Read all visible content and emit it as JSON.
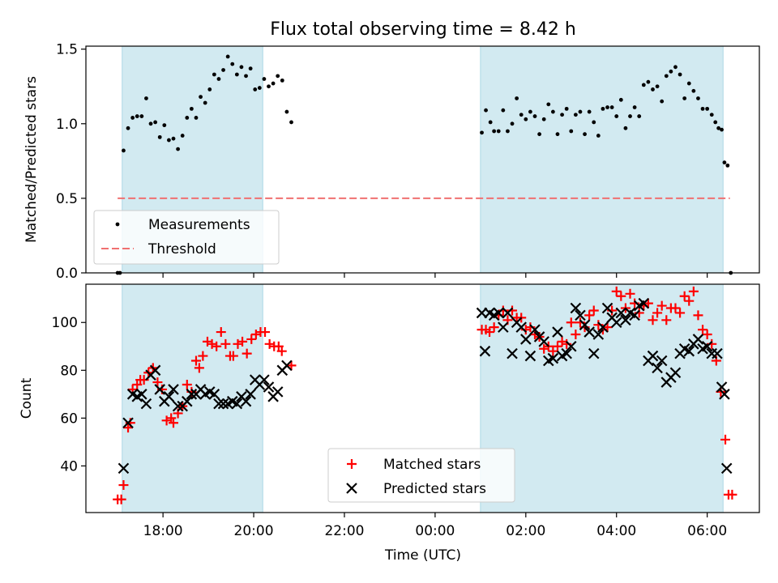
{
  "chart_data": {
    "type": "scatter",
    "title": "Flux total observing time = 8.42 h",
    "xlabel": "Time (UTC)",
    "x_unit": "hours relative to 00:00 UTC (negative = before midnight)",
    "x_ticks": [
      -6,
      -4,
      -2,
      0,
      2,
      4,
      6
    ],
    "x_tick_labels": [
      "18:00",
      "20:00",
      "22:00",
      "00:00",
      "02:00",
      "04:00",
      "06:00"
    ],
    "xlim": [
      -7.7,
      7.15
    ],
    "grid": false,
    "shaded_intervals": [
      [
        -6.9,
        -3.8
      ],
      [
        1.0,
        6.35
      ]
    ],
    "colors": {
      "shade": "#add8e6",
      "measurement": "#000000",
      "threshold": "#f07070",
      "matched": "#ff0000",
      "predicted": "#000000"
    },
    "top": {
      "ylabel": "Matched/Predicted stars",
      "ylim": [
        0,
        1.52
      ],
      "y_ticks": [
        0.0,
        0.5,
        1.0,
        1.5
      ],
      "y_tick_labels": [
        "0.0",
        "0.5",
        "1.0",
        "1.5"
      ],
      "threshold_value": 0.5,
      "threshold_x_range": [
        -7.0,
        6.5
      ],
      "legend_position": "lower left",
      "legend": [
        "Measurements",
        "Threshold"
      ],
      "measurements": [
        [
          -7.0,
          0.0
        ],
        [
          -6.95,
          0.0
        ],
        [
          -6.87,
          0.82
        ],
        [
          -6.77,
          0.97
        ],
        [
          -6.67,
          1.04
        ],
        [
          -6.57,
          1.05
        ],
        [
          -6.47,
          1.05
        ],
        [
          -6.37,
          1.17
        ],
        [
          -6.27,
          1.0
        ],
        [
          -6.17,
          1.01
        ],
        [
          -6.07,
          0.91
        ],
        [
          -5.97,
          0.99
        ],
        [
          -5.87,
          0.89
        ],
        [
          -5.77,
          0.9
        ],
        [
          -5.67,
          0.83
        ],
        [
          -5.57,
          0.92
        ],
        [
          -5.47,
          1.04
        ],
        [
          -5.37,
          1.1
        ],
        [
          -5.27,
          1.04
        ],
        [
          -5.17,
          1.18
        ],
        [
          -5.07,
          1.14
        ],
        [
          -4.97,
          1.23
        ],
        [
          -4.87,
          1.33
        ],
        [
          -4.77,
          1.3
        ],
        [
          -4.67,
          1.36
        ],
        [
          -4.57,
          1.45
        ],
        [
          -4.47,
          1.4
        ],
        [
          -4.37,
          1.33
        ],
        [
          -4.27,
          1.38
        ],
        [
          -4.17,
          1.32
        ],
        [
          -4.07,
          1.37
        ],
        [
          -3.97,
          1.23
        ],
        [
          -3.87,
          1.24
        ],
        [
          -3.77,
          1.3
        ],
        [
          -3.67,
          1.25
        ],
        [
          -3.57,
          1.27
        ],
        [
          -3.47,
          1.32
        ],
        [
          -3.37,
          1.29
        ],
        [
          -3.27,
          1.08
        ],
        [
          -3.17,
          1.01
        ],
        [
          1.03,
          0.94
        ],
        [
          1.12,
          1.09
        ],
        [
          1.22,
          1.01
        ],
        [
          1.3,
          0.95
        ],
        [
          1.4,
          0.95
        ],
        [
          1.5,
          1.09
        ],
        [
          1.6,
          0.95
        ],
        [
          1.7,
          1.0
        ],
        [
          1.8,
          1.17
        ],
        [
          1.9,
          1.06
        ],
        [
          2.0,
          1.03
        ],
        [
          2.1,
          1.08
        ],
        [
          2.2,
          1.05
        ],
        [
          2.3,
          0.93
        ],
        [
          2.4,
          1.03
        ],
        [
          2.5,
          1.13
        ],
        [
          2.6,
          1.08
        ],
        [
          2.7,
          0.93
        ],
        [
          2.8,
          1.06
        ],
        [
          2.9,
          1.1
        ],
        [
          3.0,
          0.95
        ],
        [
          3.1,
          1.06
        ],
        [
          3.2,
          1.08
        ],
        [
          3.3,
          0.93
        ],
        [
          3.4,
          1.08
        ],
        [
          3.5,
          1.01
        ],
        [
          3.6,
          0.92
        ],
        [
          3.7,
          1.1
        ],
        [
          3.8,
          1.11
        ],
        [
          3.9,
          1.11
        ],
        [
          4.0,
          1.05
        ],
        [
          4.1,
          1.16
        ],
        [
          4.2,
          0.97
        ],
        [
          4.3,
          1.05
        ],
        [
          4.4,
          1.11
        ],
        [
          4.5,
          1.05
        ],
        [
          4.6,
          1.26
        ],
        [
          4.7,
          1.28
        ],
        [
          4.8,
          1.23
        ],
        [
          4.9,
          1.25
        ],
        [
          5.0,
          1.15
        ],
        [
          5.1,
          1.32
        ],
        [
          5.2,
          1.35
        ],
        [
          5.3,
          1.38
        ],
        [
          5.4,
          1.33
        ],
        [
          5.5,
          1.17
        ],
        [
          5.6,
          1.27
        ],
        [
          5.7,
          1.22
        ],
        [
          5.8,
          1.17
        ],
        [
          5.9,
          1.1
        ],
        [
          6.0,
          1.1
        ],
        [
          6.1,
          1.06
        ],
        [
          6.18,
          1.01
        ],
        [
          6.25,
          0.97
        ],
        [
          6.32,
          0.96
        ],
        [
          6.38,
          0.74
        ],
        [
          6.45,
          0.72
        ],
        [
          6.52,
          0.0
        ]
      ]
    },
    "bottom": {
      "ylabel": "Count",
      "ylim": [
        20.5,
        116
      ],
      "y_ticks": [
        40,
        60,
        80,
        100
      ],
      "y_tick_labels": [
        "40",
        "60",
        "80",
        "100"
      ],
      "legend_position": "lower center",
      "legend": [
        "Matched stars",
        "Predicted stars"
      ],
      "matched": [
        [
          -7.0,
          26
        ],
        [
          -6.92,
          26
        ],
        [
          -6.87,
          32
        ],
        [
          -6.77,
          56
        ],
        [
          -6.72,
          58
        ],
        [
          -6.67,
          72
        ],
        [
          -6.57,
          74
        ],
        [
          -6.5,
          76
        ],
        [
          -6.42,
          76
        ],
        [
          -6.32,
          79
        ],
        [
          -6.22,
          81
        ],
        [
          -6.12,
          75
        ],
        [
          -6.02,
          72
        ],
        [
          -5.92,
          59
        ],
        [
          -5.82,
          60
        ],
        [
          -5.77,
          58
        ],
        [
          -5.67,
          62
        ],
        [
          -5.57,
          65
        ],
        [
          -5.47,
          74
        ],
        [
          -5.37,
          71
        ],
        [
          -5.27,
          84
        ],
        [
          -5.2,
          81
        ],
        [
          -5.12,
          86
        ],
        [
          -5.02,
          92
        ],
        [
          -4.92,
          91
        ],
        [
          -4.82,
          90
        ],
        [
          -4.72,
          96
        ],
        [
          -4.62,
          91
        ],
        [
          -4.52,
          86
        ],
        [
          -4.45,
          86
        ],
        [
          -4.35,
          91
        ],
        [
          -4.25,
          92
        ],
        [
          -4.15,
          87
        ],
        [
          -4.05,
          93
        ],
        [
          -3.95,
          95
        ],
        [
          -3.85,
          96
        ],
        [
          -3.75,
          96
        ],
        [
          -3.65,
          91
        ],
        [
          -3.55,
          90
        ],
        [
          -3.45,
          90
        ],
        [
          -3.38,
          88
        ],
        [
          -3.17,
          82
        ],
        [
          1.03,
          97
        ],
        [
          1.12,
          97
        ],
        [
          1.2,
          96
        ],
        [
          1.3,
          98
        ],
        [
          1.4,
          103
        ],
        [
          1.5,
          105
        ],
        [
          1.6,
          101
        ],
        [
          1.7,
          105
        ],
        [
          1.8,
          102
        ],
        [
          1.9,
          102
        ],
        [
          2.0,
          97
        ],
        [
          2.1,
          98
        ],
        [
          2.2,
          95
        ],
        [
          2.3,
          94
        ],
        [
          2.4,
          89
        ],
        [
          2.5,
          90
        ],
        [
          2.6,
          88
        ],
        [
          2.7,
          90
        ],
        [
          2.8,
          92
        ],
        [
          2.9,
          91
        ],
        [
          3.0,
          100
        ],
        [
          3.1,
          95
        ],
        [
          3.2,
          100
        ],
        [
          3.3,
          98
        ],
        [
          3.4,
          103
        ],
        [
          3.5,
          105
        ],
        [
          3.6,
          99
        ],
        [
          3.7,
          97
        ],
        [
          3.8,
          98
        ],
        [
          3.9,
          105
        ],
        [
          4.0,
          113
        ],
        [
          4.1,
          111
        ],
        [
          4.2,
          106
        ],
        [
          4.3,
          112
        ],
        [
          4.4,
          108
        ],
        [
          4.5,
          104
        ],
        [
          4.6,
          107
        ],
        [
          4.7,
          108
        ],
        [
          4.8,
          101
        ],
        [
          4.9,
          104
        ],
        [
          5.0,
          107
        ],
        [
          5.1,
          101
        ],
        [
          5.2,
          106
        ],
        [
          5.3,
          106
        ],
        [
          5.4,
          104
        ],
        [
          5.5,
          111
        ],
        [
          5.6,
          109
        ],
        [
          5.7,
          113
        ],
        [
          5.8,
          103
        ],
        [
          5.9,
          97
        ],
        [
          6.0,
          95
        ],
        [
          6.1,
          91
        ],
        [
          6.2,
          84
        ],
        [
          6.3,
          71
        ],
        [
          6.4,
          51
        ],
        [
          6.47,
          28
        ],
        [
          6.55,
          28
        ]
      ],
      "predicted": [
        [
          -6.87,
          39
        ],
        [
          -6.77,
          58
        ],
        [
          -6.67,
          70
        ],
        [
          -6.57,
          69
        ],
        [
          -6.47,
          70
        ],
        [
          -6.37,
          66
        ],
        [
          -6.27,
          78
        ],
        [
          -6.17,
          80
        ],
        [
          -6.07,
          72
        ],
        [
          -5.97,
          67
        ],
        [
          -5.87,
          69
        ],
        [
          -5.77,
          72
        ],
        [
          -5.67,
          65
        ],
        [
          -5.57,
          65
        ],
        [
          -5.47,
          67
        ],
        [
          -5.37,
          70
        ],
        [
          -5.27,
          70
        ],
        [
          -5.17,
          72
        ],
        [
          -5.07,
          70
        ],
        [
          -4.97,
          71
        ],
        [
          -4.87,
          70
        ],
        [
          -4.77,
          66
        ],
        [
          -4.67,
          66
        ],
        [
          -4.57,
          66
        ],
        [
          -4.47,
          67
        ],
        [
          -4.37,
          66
        ],
        [
          -4.27,
          69
        ],
        [
          -4.17,
          67
        ],
        [
          -4.07,
          70
        ],
        [
          -3.97,
          76
        ],
        [
          -3.87,
          74
        ],
        [
          -3.77,
          76
        ],
        [
          -3.67,
          73
        ],
        [
          -3.57,
          69
        ],
        [
          -3.47,
          71
        ],
        [
          -3.37,
          80
        ],
        [
          -3.27,
          82
        ],
        [
          1.03,
          104
        ],
        [
          1.1,
          88
        ],
        [
          1.2,
          104
        ],
        [
          1.3,
          103
        ],
        [
          1.4,
          104
        ],
        [
          1.5,
          98
        ],
        [
          1.6,
          104
        ],
        [
          1.7,
          87
        ],
        [
          1.8,
          100
        ],
        [
          1.9,
          98
        ],
        [
          2.0,
          93
        ],
        [
          2.1,
          86
        ],
        [
          2.2,
          97
        ],
        [
          2.3,
          94
        ],
        [
          2.4,
          92
        ],
        [
          2.5,
          84
        ],
        [
          2.6,
          85
        ],
        [
          2.7,
          96
        ],
        [
          2.8,
          86
        ],
        [
          2.9,
          87
        ],
        [
          3.0,
          90
        ],
        [
          3.1,
          106
        ],
        [
          3.2,
          103
        ],
        [
          3.3,
          99
        ],
        [
          3.4,
          96
        ],
        [
          3.5,
          87
        ],
        [
          3.6,
          95
        ],
        [
          3.7,
          98
        ],
        [
          3.8,
          106
        ],
        [
          3.9,
          102
        ],
        [
          4.0,
          100
        ],
        [
          4.1,
          104
        ],
        [
          4.2,
          101
        ],
        [
          4.3,
          104
        ],
        [
          4.4,
          103
        ],
        [
          4.5,
          107
        ],
        [
          4.6,
          108
        ],
        [
          4.7,
          84
        ],
        [
          4.8,
          86
        ],
        [
          4.9,
          81
        ],
        [
          5.0,
          84
        ],
        [
          5.1,
          75
        ],
        [
          5.2,
          77
        ],
        [
          5.3,
          79
        ],
        [
          5.4,
          87
        ],
        [
          5.5,
          89
        ],
        [
          5.6,
          88
        ],
        [
          5.7,
          91
        ],
        [
          5.8,
          93
        ],
        [
          5.9,
          89
        ],
        [
          6.0,
          90
        ],
        [
          6.1,
          87
        ],
        [
          6.22,
          87
        ],
        [
          6.32,
          73
        ],
        [
          6.38,
          70
        ],
        [
          6.43,
          39
        ]
      ]
    }
  }
}
